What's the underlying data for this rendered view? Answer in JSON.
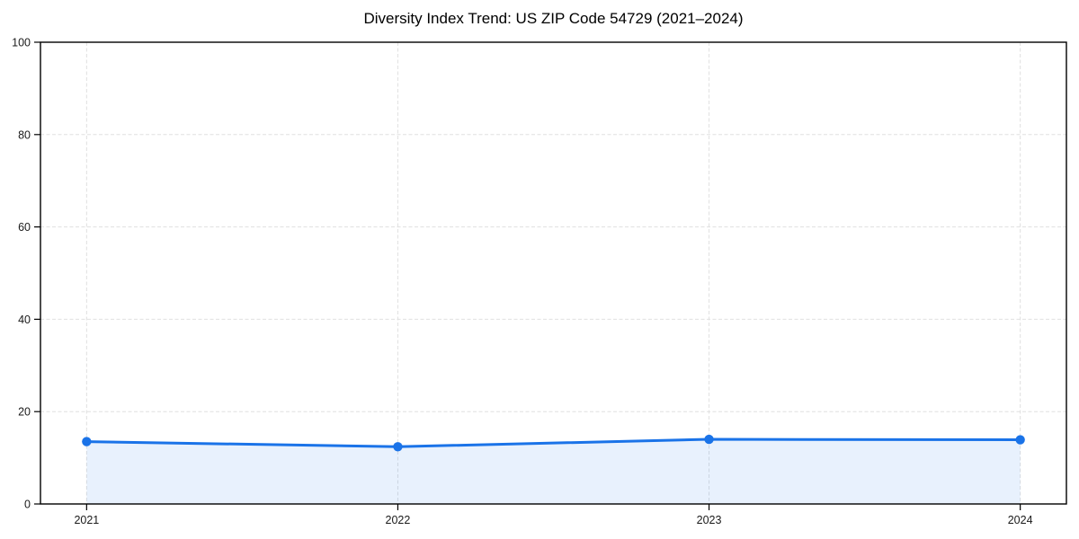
{
  "chart_data": {
    "type": "line",
    "title": "Diversity Index Trend: US ZIP Code 54729 (2021–2024)",
    "categories": [
      "2021",
      "2022",
      "2023",
      "2024"
    ],
    "series": [
      {
        "name": "Diversity Index",
        "values": [
          13.5,
          12.4,
          14.0,
          13.9
        ]
      }
    ],
    "xlabel": "",
    "ylabel": "",
    "ylim": [
      0,
      100
    ],
    "y_ticks": [
      0,
      20,
      40,
      60,
      80,
      100
    ],
    "grid": true,
    "grid_style": "dashed",
    "legend": false,
    "marker": "circle",
    "area_fill": true,
    "colors": {
      "line": "#1a73e8",
      "fill": "#1a73e8",
      "fill_opacity": 0.1,
      "grid": "#e0e0e0",
      "axis": "#000000",
      "text": "#1a1a1a",
      "background": "#ffffff"
    }
  }
}
